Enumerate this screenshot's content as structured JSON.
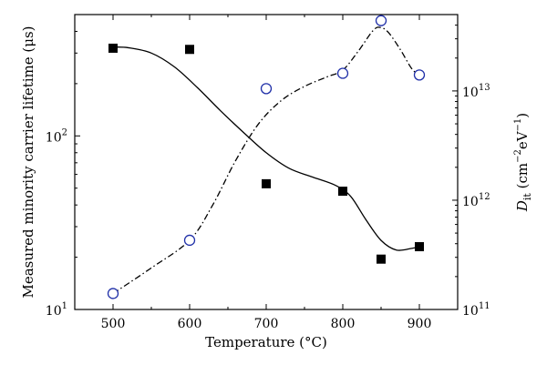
{
  "chart_data": {
    "type": "scatter",
    "xlabel": "Temperature (°C)",
    "ylabel_left": "Measured minority carrier lifetime (μs)",
    "ylabel_right": "D_it (cm^-2 eV^-1)",
    "x_ticks": [
      500,
      600,
      700,
      800,
      900
    ],
    "xlim": [
      450,
      950
    ],
    "y_left_scale": "log",
    "y_left_lim": [
      10,
      500
    ],
    "y_left_ticks": [
      {
        "value": 10,
        "mantissa": "10",
        "exponent": "1"
      },
      {
        "value": 100,
        "mantissa": "10",
        "exponent": "2"
      }
    ],
    "y_right_scale": "log",
    "y_right_lim": [
      100000000000.0,
      50000000000000.0
    ],
    "y_right_ticks": [
      {
        "value": 100000000000.0,
        "mantissa": "10",
        "exponent": "11"
      },
      {
        "value": 1000000000000.0,
        "mantissa": "10",
        "exponent": "12"
      },
      {
        "value": 10000000000000.0,
        "mantissa": "10",
        "exponent": "13"
      }
    ],
    "series": [
      {
        "axis": "left",
        "marker": "filled-square",
        "color": "#000000",
        "x": [
          500,
          600,
          700,
          800,
          850,
          900
        ],
        "y": [
          320,
          315,
          53,
          48,
          19.5,
          23
        ]
      },
      {
        "axis": "right",
        "marker": "open-circle",
        "color": "#1f2fa8",
        "x": [
          500,
          600,
          700,
          800,
          850,
          900
        ],
        "y": [
          140000000000.0,
          430000000000.0,
          10500000000000.0,
          14500000000000.0,
          44000000000000.0,
          14000000000000.0
        ]
      }
    ],
    "fit_curves": [
      {
        "axis": "left",
        "style": "solid",
        "color": "#000000",
        "x": [
          500,
          520,
          550,
          580,
          610,
          640,
          670,
          700,
          730,
          760,
          790,
          810,
          830,
          850,
          870,
          890,
          900
        ],
        "y": [
          325,
          322,
          300,
          250,
          190,
          140,
          105,
          80,
          65,
          58,
          52,
          45,
          33,
          25,
          22,
          22.5,
          23
        ]
      },
      {
        "axis": "right",
        "style": "dashdot",
        "color": "#000000",
        "x": [
          500,
          550,
          600,
          630,
          660,
          690,
          720,
          750,
          780,
          800,
          820,
          840,
          850,
          860,
          875,
          890,
          900
        ],
        "y": [
          140000000000.0,
          240000000000.0,
          430000000000.0,
          900000000000.0,
          2300000000000.0,
          5000000000000.0,
          8200000000000.0,
          11000000000000.0,
          13500000000000.0,
          15500000000000.0,
          23000000000000.0,
          36000000000000.0,
          38000000000000.0,
          34000000000000.0,
          24000000000000.0,
          16000000000000.0,
          14000000000000.0
        ]
      }
    ],
    "grid": false,
    "legend": "none"
  }
}
